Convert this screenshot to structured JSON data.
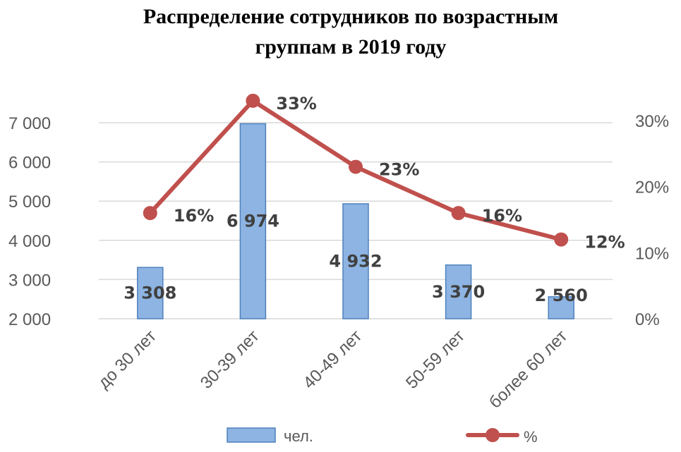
{
  "chart_data": {
    "type": "bar+line",
    "title_lines": [
      "Распределение сотрудников по возрастным",
      "группам в 2019 году"
    ],
    "categories": [
      "до 30 лет",
      "30-39 лет",
      "40-49 лет",
      "50-59 лет",
      "более 60 лет"
    ],
    "series": [
      {
        "name": "чел.",
        "type": "bar",
        "axis": "left",
        "values": [
          3308,
          6974,
          4932,
          3370,
          2560
        ],
        "labels": [
          "3 308",
          "6 974",
          "4 932",
          "3 370",
          "2 560"
        ],
        "color": "#8DB4E2",
        "border_color": "#4F81BD"
      },
      {
        "name": "%",
        "type": "line",
        "axis": "right",
        "values": [
          16,
          33,
          23,
          16,
          12
        ],
        "labels": [
          "16%",
          "33%",
          "23%",
          "16%",
          "12%"
        ],
        "color": "#C0504D"
      }
    ],
    "left_axis": {
      "range": [
        2000,
        7000
      ],
      "ticks": [
        2000,
        3000,
        4000,
        5000,
        6000,
        7000
      ],
      "tick_labels": [
        "2 000",
        "3 000",
        "4 000",
        "5 000",
        "6 000",
        "7 000"
      ]
    },
    "right_axis": {
      "range": [
        0,
        30
      ],
      "ticks": [
        0,
        10,
        20,
        30
      ],
      "tick_labels": [
        "0%",
        "10%",
        "20%",
        "30%"
      ]
    },
    "grid": true,
    "legend_position": "bottom"
  }
}
